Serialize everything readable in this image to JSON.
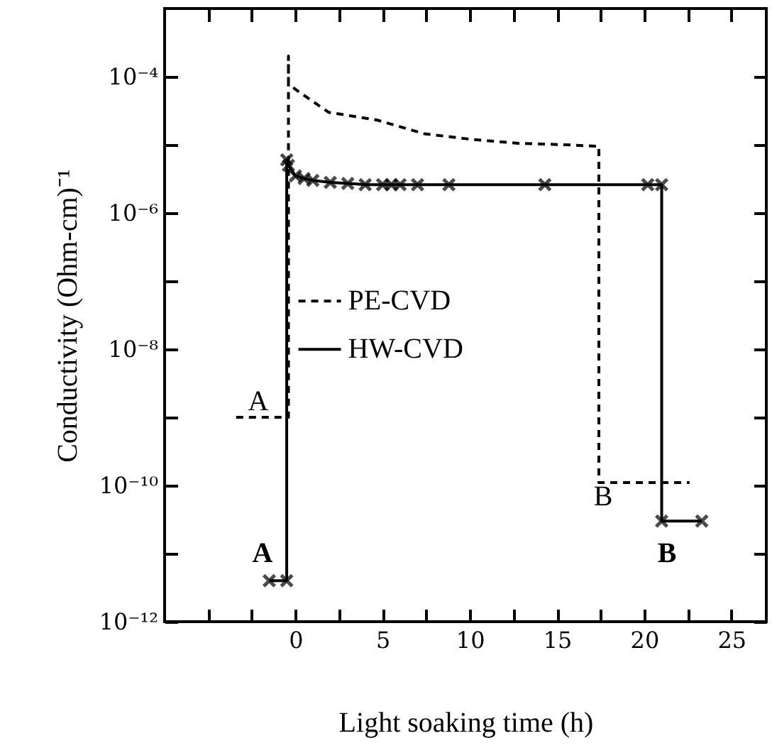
{
  "chart_data": {
    "type": "line",
    "xlabel": "Light soaking time   (h)",
    "ylabel": "Conductivity   (Ohm-cm)⁻¹",
    "log": true,
    "xlim": [
      -7.5,
      27
    ],
    "ylim": [
      1e-12,
      0.001
    ],
    "xticks": [
      {
        "value": -5,
        "label": null
      },
      {
        "value": -2.5,
        "label": null
      },
      0,
      {
        "value": 2.5,
        "label": null
      },
      5,
      {
        "value": 7.5,
        "label": null
      },
      10,
      {
        "value": 12.5,
        "label": null
      },
      15,
      {
        "value": 17.5,
        "label": null
      },
      20,
      {
        "value": 22.5,
        "label": null
      },
      25
    ],
    "yticks": [
      {
        "value": 1e-12,
        "label": "10⁻¹²"
      },
      {
        "value": 1e-11,
        "label": null
      },
      {
        "value": 1e-10,
        "label": "10⁻¹⁰"
      },
      {
        "value": 1e-09,
        "label": null
      },
      {
        "value": 1e-08,
        "label": "10⁻⁸"
      },
      {
        "value": 1e-07,
        "label": null
      },
      {
        "value": 1e-06,
        "label": "10⁻⁶"
      },
      {
        "value": 1e-05,
        "label": null
      },
      {
        "value": 0.0001,
        "label": "10⁻⁴"
      }
    ],
    "grid": false,
    "legend": "center left",
    "series": [
      {
        "name": "PE-CVD",
        "color": "#000000",
        "line_style": "dashed",
        "marker": "none",
        "x": [
          -3.4,
          -0.4,
          -0.4,
          -0.4,
          0,
          1.9,
          4.7,
          7.4,
          10.1,
          12.8,
          15.5,
          17.4,
          17.4,
          22.6
        ],
        "values": [
          1e-09,
          1e-09,
          0.0002,
          8e-05,
          6.5e-05,
          3e-05,
          2.3e-05,
          1.45e-05,
          1.2e-05,
          1.05e-05,
          1e-05,
          9.5e-06,
          1.1e-10,
          1.1e-10
        ]
      },
      {
        "name": "HW-CVD",
        "color": "#000000",
        "line_style": "solid",
        "marker": "cross",
        "x": [
          -1.5,
          -0.5,
          -0.5,
          -0.4,
          0,
          0.5,
          1,
          2,
          3,
          4,
          5,
          5.5,
          6,
          7,
          8.8,
          14.3,
          20.2,
          21.0,
          21.0,
          23.3
        ],
        "values": [
          4e-12,
          4e-12,
          6e-06,
          5e-06,
          3.5e-06,
          3.2e-06,
          3e-06,
          2.8e-06,
          2.7e-06,
          2.6e-06,
          2.6e-06,
          2.6e-06,
          2.6e-06,
          2.6e-06,
          2.6e-06,
          2.6e-06,
          2.6e-06,
          2.6e-06,
          3e-11,
          3e-11
        ]
      }
    ],
    "annotations": [
      "A",
      "A",
      "B",
      "B"
    ]
  }
}
